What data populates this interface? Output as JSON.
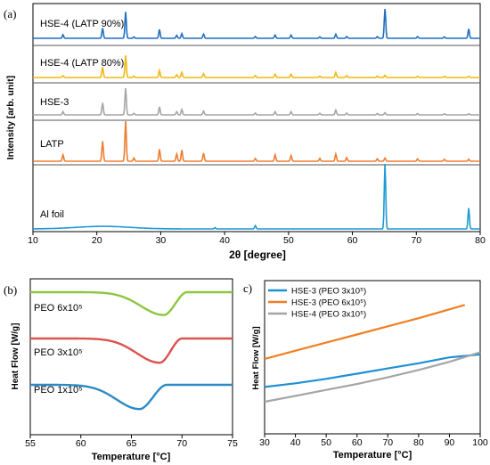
{
  "chart_data": [
    {
      "panel": "(a)",
      "type": "line",
      "xlabel": "2θ [degree]",
      "ylabel": "Intensity [arb. unit]",
      "xlim": [
        10,
        80
      ],
      "xticks": [
        10,
        20,
        30,
        40,
        50,
        60,
        70,
        80
      ],
      "yticks_shown": false,
      "grid": false,
      "layout": "stacked offset traces",
      "peak_positions": [
        14.7,
        20.9,
        24.5,
        25.8,
        29.8,
        32.5,
        33.3,
        36.7,
        44.8,
        47.9,
        50.4,
        54.9,
        57.4,
        59.1,
        63.9,
        65.1,
        70.2,
        74.4,
        78.2
      ],
      "series": [
        {
          "name": "HSE-4 (LATP 90%)",
          "color": "#1f6fc4",
          "baseline": 0.0,
          "peaks": [
            [
              14.7,
              0.12
            ],
            [
              20.9,
              0.35
            ],
            [
              24.5,
              0.9
            ],
            [
              25.8,
              0.05
            ],
            [
              29.8,
              0.3
            ],
            [
              32.5,
              0.1
            ],
            [
              33.3,
              0.16
            ],
            [
              36.7,
              0.14
            ],
            [
              44.8,
              0.06
            ],
            [
              47.9,
              0.11
            ],
            [
              50.4,
              0.11
            ],
            [
              54.9,
              0.05
            ],
            [
              57.4,
              0.14
            ],
            [
              59.1,
              0.06
            ],
            [
              63.9,
              0.06
            ],
            [
              65.1,
              1.0
            ],
            [
              70.2,
              0.06
            ],
            [
              74.4,
              0.05
            ],
            [
              78.2,
              0.32
            ]
          ]
        },
        {
          "name": "HSE-4 (LATP 80%)",
          "color": "#f2b80f",
          "baseline": 0.0,
          "peaks": [
            [
              14.7,
              0.08
            ],
            [
              20.9,
              0.45
            ],
            [
              24.5,
              0.95
            ],
            [
              25.8,
              0.06
            ],
            [
              29.8,
              0.3
            ],
            [
              32.5,
              0.12
            ],
            [
              33.3,
              0.22
            ],
            [
              36.7,
              0.16
            ],
            [
              44.8,
              0.08
            ],
            [
              47.9,
              0.14
            ],
            [
              50.4,
              0.14
            ],
            [
              54.9,
              0.06
            ],
            [
              57.4,
              0.22
            ],
            [
              59.1,
              0.08
            ],
            [
              63.9,
              0.06
            ],
            [
              65.1,
              0.1
            ],
            [
              70.2,
              0.05
            ],
            [
              74.4,
              0.05
            ],
            [
              78.2,
              0.05
            ]
          ]
        },
        {
          "name": "HSE-3",
          "color": "#a5a5a5",
          "baseline": 0.0,
          "peaks": [
            [
              14.7,
              0.12
            ],
            [
              20.9,
              0.45
            ],
            [
              24.5,
              1.0
            ],
            [
              25.8,
              0.06
            ],
            [
              29.8,
              0.3
            ],
            [
              32.5,
              0.12
            ],
            [
              33.3,
              0.2
            ],
            [
              36.7,
              0.14
            ],
            [
              44.8,
              0.07
            ],
            [
              47.9,
              0.12
            ],
            [
              50.4,
              0.12
            ],
            [
              54.9,
              0.06
            ],
            [
              57.4,
              0.18
            ],
            [
              59.1,
              0.07
            ],
            [
              63.9,
              0.05
            ],
            [
              65.1,
              0.08
            ],
            [
              70.2,
              0.05
            ],
            [
              74.4,
              0.04
            ],
            [
              78.2,
              0.04
            ]
          ]
        },
        {
          "name": "LATP",
          "color": "#ed7d31",
          "baseline": 0.0,
          "peaks": [
            [
              14.7,
              0.16
            ],
            [
              20.9,
              0.5
            ],
            [
              24.5,
              1.0
            ],
            [
              25.8,
              0.08
            ],
            [
              29.8,
              0.3
            ],
            [
              32.5,
              0.18
            ],
            [
              33.3,
              0.28
            ],
            [
              36.7,
              0.2
            ],
            [
              44.8,
              0.07
            ],
            [
              47.9,
              0.16
            ],
            [
              50.4,
              0.14
            ],
            [
              54.9,
              0.07
            ],
            [
              57.4,
              0.18
            ],
            [
              59.1,
              0.09
            ],
            [
              63.9,
              0.06
            ],
            [
              65.1,
              0.08
            ],
            [
              70.2,
              0.06
            ],
            [
              74.4,
              0.05
            ],
            [
              78.2,
              0.05
            ]
          ]
        },
        {
          "name": "Al foil",
          "color": "#1f9ad6",
          "baseline": 0.0,
          "broad_hump": [
            [
              21,
              0.04
            ]
          ],
          "peaks": [
            [
              38.5,
              0.02
            ],
            [
              44.8,
              0.05
            ],
            [
              65.1,
              1.0
            ],
            [
              78.2,
              0.32
            ]
          ]
        }
      ]
    },
    {
      "panel": "(b)",
      "type": "line",
      "xlabel": "Temperature [°C]",
      "ylabel": "Heat Flow [W/g]",
      "xlim": [
        55,
        75
      ],
      "xticks": [
        55,
        60,
        65,
        70,
        75
      ],
      "yticks_shown": false,
      "grid": false,
      "series": [
        {
          "name": "PEO 6x10⁵",
          "color": "#8dc63f",
          "baseline": 0.0,
          "peak_center": 68.2,
          "depth": 0.16,
          "rise_end": 70.5
        },
        {
          "name": "PEO 3x10⁵",
          "color": "#d9534f",
          "baseline": 0.0,
          "peak_center": 67.8,
          "depth": 0.17,
          "rise_end": 70.0
        },
        {
          "name": "PEO 1x10⁵",
          "color": "#2a8bc4",
          "baseline": 0.0,
          "peak_center": 65.8,
          "depth": 0.17,
          "rise_end": 68.5
        }
      ]
    },
    {
      "panel": "c)",
      "type": "line",
      "xlabel": "Temperature [°C]",
      "ylabel": "Heat Flow  [W/g]",
      "xlim": [
        30,
        100
      ],
      "xticks": [
        30,
        40,
        50,
        60,
        70,
        80,
        90,
        100
      ],
      "yticks_shown": false,
      "grid": false,
      "legend": "top-left",
      "series": [
        {
          "name": "HSE-3 (PEO 3x10⁵)",
          "color": "#1f8fd6",
          "x": [
            30,
            40,
            50,
            60,
            70,
            80,
            90,
            100
          ],
          "y": [
            0.1,
            0.125,
            0.155,
            0.19,
            0.225,
            0.26,
            0.3,
            0.32
          ]
        },
        {
          "name": "HSE-3 (PEO 6x10⁵)",
          "color": "#f07f23",
          "x": [
            30,
            40,
            50,
            60,
            70,
            80,
            90,
            95
          ],
          "y": [
            0.29,
            0.345,
            0.4,
            0.455,
            0.51,
            0.565,
            0.625,
            0.655
          ]
        },
        {
          "name": "HSE-4 (PEO 3x10⁵)",
          "color": "#a5a5a5",
          "x": [
            30,
            40,
            50,
            60,
            70,
            80,
            90,
            100
          ],
          "y": [
            0.0,
            0.04,
            0.08,
            0.12,
            0.165,
            0.215,
            0.27,
            0.335
          ]
        }
      ]
    }
  ]
}
